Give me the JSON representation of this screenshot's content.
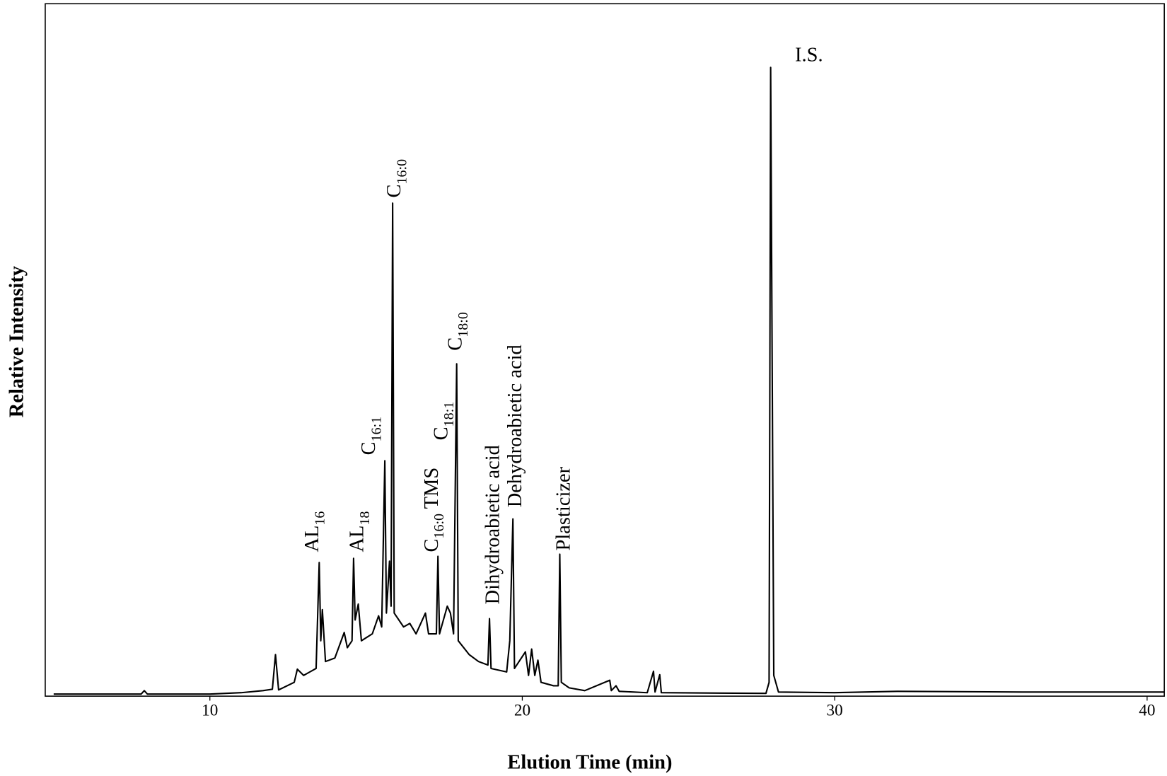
{
  "chart_data": {
    "type": "line",
    "xlabel": "Elution Time (min)",
    "ylabel": "Relative Intensity",
    "xlim": [
      4.73,
      40.55
    ],
    "ylim": [
      0,
      100
    ],
    "xticks": [
      10,
      20,
      30,
      40
    ],
    "color": "#000000",
    "x": [
      5.0,
      7.8,
      7.9,
      8.0,
      10.0,
      11.0,
      11.7,
      12.0,
      12.1,
      12.2,
      12.7,
      12.8,
      13.0,
      13.2,
      13.4,
      13.5,
      13.55,
      13.6,
      13.7,
      14.0,
      14.3,
      14.4,
      14.55,
      14.6,
      14.65,
      14.75,
      14.85,
      15.2,
      15.4,
      15.5,
      15.6,
      15.65,
      15.75,
      15.8,
      15.85,
      15.9,
      16.2,
      16.4,
      16.6,
      16.9,
      17.0,
      17.25,
      17.3,
      17.35,
      17.6,
      17.7,
      17.8,
      17.9,
      17.95,
      18.3,
      18.6,
      18.9,
      18.95,
      19.0,
      19.5,
      19.6,
      19.7,
      19.75,
      20.1,
      20.2,
      20.3,
      20.4,
      20.5,
      20.6,
      21.0,
      21.15,
      21.2,
      21.25,
      21.5,
      22.0,
      22.8,
      22.85,
      23.0,
      23.1,
      24.0,
      24.2,
      24.25,
      24.4,
      24.45,
      27.8,
      27.9,
      27.95,
      28.05,
      28.2,
      30.0,
      32.0,
      36.0,
      40.55
    ],
    "y": [
      0.3,
      0.3,
      0.8,
      0.3,
      0.3,
      0.5,
      0.8,
      1.0,
      6.0,
      0.9,
      2.0,
      3.9,
      3.0,
      3.5,
      4.0,
      19.3,
      8.0,
      12.5,
      5.0,
      5.5,
      9.2,
      7.0,
      8.0,
      19.9,
      11.0,
      13.3,
      8.0,
      9.0,
      11.6,
      10.0,
      34.0,
      12.0,
      19.5,
      13.0,
      71.2,
      12.0,
      10.0,
      10.5,
      9.0,
      12.0,
      9.0,
      9.0,
      20.2,
      9.0,
      13.0,
      12.0,
      9.0,
      48.0,
      8.0,
      6.0,
      5.0,
      4.5,
      11.2,
      4.0,
      3.5,
      8.0,
      25.6,
      4.0,
      6.4,
      3.0,
      6.8,
      3.0,
      5.2,
      2.0,
      1.5,
      1.5,
      20.5,
      2.0,
      1.2,
      0.8,
      2.3,
      0.8,
      1.5,
      0.7,
      0.5,
      3.6,
      0.6,
      3.1,
      0.5,
      0.4,
      2.0,
      90.8,
      3.0,
      0.6,
      0.5,
      0.7,
      0.6,
      0.6
    ],
    "annotations": [
      {
        "parts": [
          "AL",
          {
            "sub": "16"
          }
        ]
      },
      {
        "parts": [
          "AL",
          {
            "sub": "18"
          }
        ]
      },
      {
        "parts": [
          "C",
          {
            "sub": "16:1"
          }
        ]
      },
      {
        "parts": [
          "C",
          {
            "sub": "16:0"
          }
        ]
      },
      {
        "parts": [
          "C",
          {
            "sub": "16:0"
          },
          " TMS"
        ]
      },
      {
        "parts": [
          "C",
          {
            "sub": "18:1"
          }
        ]
      },
      {
        "parts": [
          "C",
          {
            "sub": "18:0"
          }
        ]
      },
      {
        "parts": [
          "Dihydroabietic acid"
        ]
      },
      {
        "parts": [
          "Dehydroabietic acid"
        ]
      },
      {
        "parts": [
          "Plasticizer"
        ]
      },
      {
        "parts": [
          "I.S."
        ]
      }
    ]
  }
}
